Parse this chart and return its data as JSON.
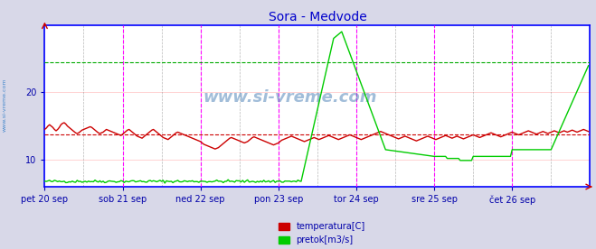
{
  "title": "Sora - Medvode",
  "title_color": "#0000cc",
  "background_color": "#d8d8e8",
  "plot_bg_color": "#ffffff",
  "grid_color": "#cccccc",
  "xlabel_color": "#0000aa",
  "ylabel_color": "#0000aa",
  "axis_color": "#0000ff",
  "x_tick_labels": [
    "pet 20 sep",
    "sob 21 sep",
    "ned 22 sep",
    "pon 23 sep",
    "tor 24 sep",
    "sre 25 sep",
    "čet 26 sep"
  ],
  "y_ticks": [
    10,
    20
  ],
  "ylim": [
    6,
    30
  ],
  "xlim": [
    0,
    336
  ],
  "n_points": 336,
  "vertical_line_color": "#ff00ff",
  "vertical_dashed_color": "#888888",
  "temp_avg_color": "#cc0000",
  "flow_avg_color": "#00aa00",
  "temp_color": "#cc0000",
  "flow_color": "#00cc00",
  "watermark_color": "#5588bb",
  "watermark_text": "www.si-vreme.com",
  "legend_temp_label": "temperatura[C]",
  "legend_flow_label": "pretok[m3/s]",
  "legend_temp_color": "#cc0000",
  "legend_flow_color": "#00cc00",
  "temp_avg_value": 13.8,
  "flow_avg_value": 24.5,
  "sidebar_text": "www.si-vreme.com",
  "sidebar_color": "#4488cc",
  "figwidth": 6.59,
  "figheight": 2.76,
  "dpi": 100
}
